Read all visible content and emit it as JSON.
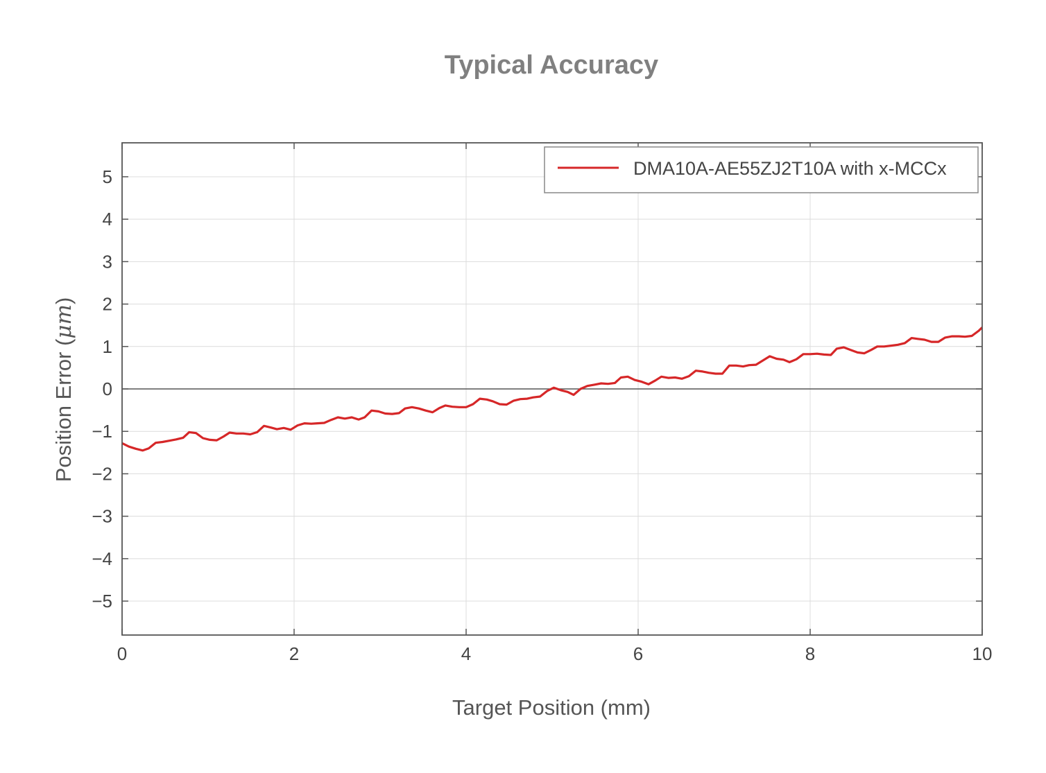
{
  "chart_data": {
    "type": "line",
    "title": "Typical Accuracy",
    "xlabel": "Target Position (mm)",
    "ylabel_main": "Position Error (",
    "ylabel_unit": "μm",
    "ylabel_end": ")",
    "xlim": [
      0,
      10
    ],
    "ylim": [
      -5.8,
      5.8
    ],
    "xticks": [
      0,
      2,
      4,
      6,
      8,
      10
    ],
    "xtick_labels": [
      "0",
      "2",
      "4",
      "6",
      "8",
      "10"
    ],
    "yticks": [
      5,
      4,
      3,
      2,
      1,
      0,
      -1,
      -2,
      -3,
      -4,
      -5
    ],
    "ytick_labels": [
      "5",
      "4",
      "3",
      "2",
      "1",
      "0",
      "−1",
      "−2",
      "−3",
      "−4",
      "−5"
    ],
    "grid": true,
    "zero_line": true,
    "legend_position": "top-right",
    "series": [
      {
        "name": "DMA10A-AE55ZJ2T10A with x-MCCx",
        "color": "#d62728",
        "x": [
          0,
          0.08,
          0.16,
          0.24,
          0.31,
          0.39,
          0.47,
          0.55,
          0.63,
          0.71,
          0.78,
          0.86,
          0.94,
          1.02,
          1.1,
          1.18,
          1.25,
          1.33,
          1.41,
          1.49,
          1.57,
          1.65,
          1.73,
          1.8,
          1.88,
          1.96,
          2.04,
          2.12,
          2.2,
          2.27,
          2.35,
          2.43,
          2.51,
          2.59,
          2.67,
          2.75,
          2.82,
          2.9,
          2.98,
          3.06,
          3.14,
          3.22,
          3.29,
          3.37,
          3.45,
          3.53,
          3.61,
          3.69,
          3.76,
          3.84,
          3.92,
          4.0,
          4.08,
          4.16,
          4.24,
          4.31,
          4.39,
          4.47,
          4.55,
          4.63,
          4.71,
          4.78,
          4.86,
          4.94,
          5.02,
          5.1,
          5.18,
          5.25,
          5.33,
          5.41,
          5.49,
          5.57,
          5.65,
          5.73,
          5.8,
          5.88,
          5.96,
          6.04,
          6.12,
          6.2,
          6.27,
          6.35,
          6.43,
          6.51,
          6.59,
          6.67,
          6.75,
          6.82,
          6.9,
          6.98,
          7.06,
          7.14,
          7.22,
          7.29,
          7.37,
          7.45,
          7.53,
          7.61,
          7.69,
          7.76,
          7.84,
          7.92,
          8.0,
          8.08,
          8.16,
          8.24,
          8.31,
          8.39,
          8.47,
          8.55,
          8.63,
          8.71,
          8.78,
          8.86,
          8.94,
          9.02,
          9.1,
          9.18,
          9.25,
          9.33,
          9.41,
          9.49,
          9.57,
          9.65,
          9.73,
          9.8,
          9.88,
          9.96,
          10.0
        ],
        "y": [
          -1.28,
          -1.36,
          -1.41,
          -1.45,
          -1.4,
          -1.27,
          -1.25,
          -1.22,
          -1.19,
          -1.15,
          -1.02,
          -1.04,
          -1.16,
          -1.2,
          -1.21,
          -1.12,
          -1.03,
          -1.05,
          -1.05,
          -1.07,
          -1.02,
          -0.87,
          -0.91,
          -0.95,
          -0.92,
          -0.96,
          -0.86,
          -0.81,
          -0.82,
          -0.81,
          -0.8,
          -0.73,
          -0.67,
          -0.7,
          -0.67,
          -0.72,
          -0.67,
          -0.51,
          -0.53,
          -0.58,
          -0.59,
          -0.57,
          -0.46,
          -0.43,
          -0.46,
          -0.51,
          -0.55,
          -0.45,
          -0.39,
          -0.42,
          -0.43,
          -0.43,
          -0.36,
          -0.23,
          -0.25,
          -0.29,
          -0.36,
          -0.37,
          -0.28,
          -0.24,
          -0.23,
          -0.2,
          -0.18,
          -0.05,
          0.03,
          -0.03,
          -0.07,
          -0.14,
          0.0,
          0.07,
          0.1,
          0.13,
          0.12,
          0.14,
          0.27,
          0.29,
          0.21,
          0.17,
          0.11,
          0.2,
          0.29,
          0.26,
          0.27,
          0.24,
          0.3,
          0.43,
          0.41,
          0.38,
          0.36,
          0.36,
          0.55,
          0.55,
          0.53,
          0.56,
          0.57,
          0.67,
          0.77,
          0.71,
          0.69,
          0.63,
          0.7,
          0.82,
          0.82,
          0.83,
          0.81,
          0.8,
          0.95,
          0.98,
          0.92,
          0.86,
          0.84,
          0.92,
          1.0,
          1.0,
          1.02,
          1.04,
          1.08,
          1.2,
          1.18,
          1.16,
          1.11,
          1.11,
          1.21,
          1.24,
          1.24,
          1.23,
          1.25,
          1.37,
          1.45
        ]
      }
    ]
  }
}
